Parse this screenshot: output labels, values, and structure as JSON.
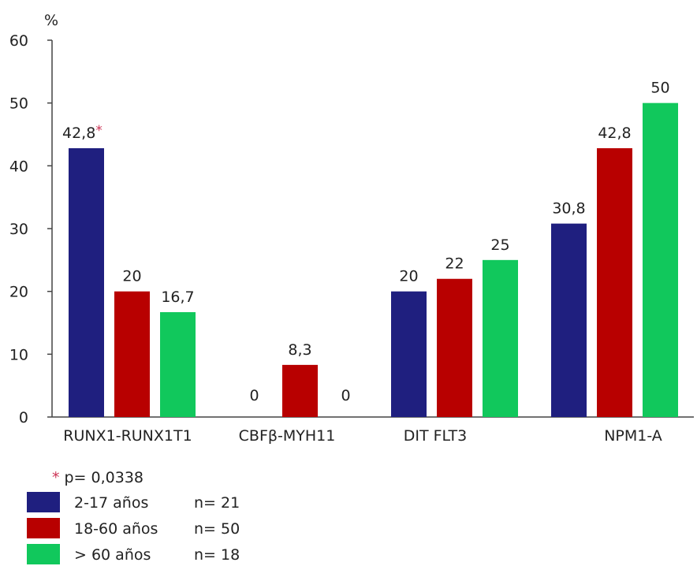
{
  "chart_data": {
    "type": "bar",
    "ylabel": "%",
    "ylim": [
      0,
      60
    ],
    "yticks": [
      "0",
      "10",
      "20",
      "30",
      "40",
      "50",
      "60"
    ],
    "categories": [
      "RUNX1-RUNX1T1",
      "CBFβ-MYH11",
      "DIT FLT3",
      "NPM1-A"
    ],
    "series": [
      {
        "name": "2-17 años",
        "n_label": "n= 21",
        "color": "#1f1f7f",
        "values": [
          42.8,
          0,
          20,
          30.8
        ],
        "labels": [
          "42,8",
          "0",
          "20",
          "30,8"
        ]
      },
      {
        "name": "18-60 años",
        "n_label": "n= 50",
        "color": "#b80000",
        "values": [
          20,
          8.3,
          22,
          42.8
        ],
        "labels": [
          "20",
          "8,3",
          "22",
          "42,8"
        ]
      },
      {
        "name": "> 60 años",
        "n_label": "n= 18",
        "color": "#11c85c",
        "values": [
          16.7,
          0,
          25,
          50
        ],
        "labels": [
          "16,7",
          "0",
          "25",
          "50"
        ]
      }
    ],
    "annotation": {
      "symbol": "*",
      "symbol_color": "#cc3355",
      "text": "p= 0,0338",
      "category": "RUNX1-RUNX1T1",
      "series": "2-17 años"
    },
    "grid": false,
    "legend_position": "bottom-left"
  }
}
